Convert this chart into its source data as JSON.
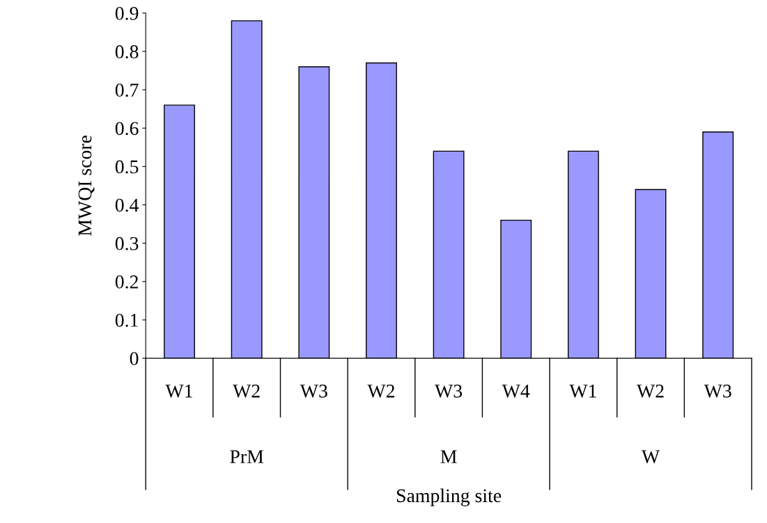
{
  "chart_data": {
    "type": "bar",
    "xlabel": "Sampling site",
    "ylabel": "MWQI score",
    "categories": [
      "W1",
      "W2",
      "W3",
      "W2",
      "W3",
      "W4",
      "W1",
      "W2",
      "W3"
    ],
    "values": [
      0.66,
      0.88,
      0.76,
      0.77,
      0.54,
      0.36,
      0.54,
      0.44,
      0.59
    ],
    "color": "#9999ff",
    "ylim": [
      0,
      0.9
    ],
    "yticks": [
      0,
      0.1,
      0.2,
      0.3,
      0.4,
      0.5,
      0.6,
      0.7,
      0.8,
      0.9
    ],
    "grid": false,
    "annotations": [
      "PrM",
      "M",
      "W"
    ]
  }
}
